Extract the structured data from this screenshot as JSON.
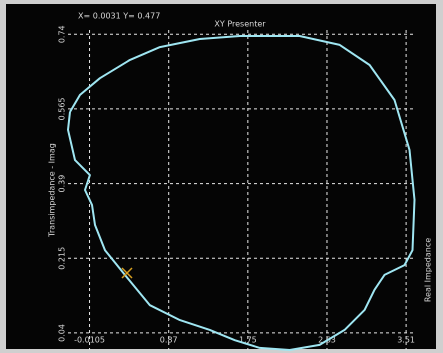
{
  "chart_data": {
    "type": "line",
    "title": "XY Presenter",
    "readout": "X= 0.0031 Y= 0.477",
    "y_label": "Transimpedance - Imag",
    "x_label": "Real Impedance",
    "series": [
      {
        "name": "XY",
        "color": "#9fe6f2",
        "x": [
          -0.228,
          -0.117,
          0.105,
          0.439,
          0.772,
          1.216,
          1.66,
          2.326,
          2.771,
          3.104,
          3.381,
          3.548,
          3.603,
          3.581,
          3.492,
          3.27,
          3.159,
          3.048,
          2.826,
          2.548,
          2.215,
          1.882,
          1.605,
          1.327,
          0.994,
          0.661,
          0.383,
          0.161,
          0.05,
          0.017,
          -0.061,
          -0.006,
          -0.172,
          -0.25,
          -0.228
        ],
        "values": [
          0.558,
          0.598,
          0.637,
          0.68,
          0.71,
          0.729,
          0.736,
          0.736,
          0.715,
          0.668,
          0.586,
          0.469,
          0.352,
          0.234,
          0.199,
          0.176,
          0.141,
          0.094,
          0.047,
          0.012,
          0.0,
          0.005,
          0.023,
          0.047,
          0.07,
          0.105,
          0.176,
          0.234,
          0.293,
          0.34,
          0.375,
          0.41,
          0.445,
          0.516,
          0.558
        ]
      }
    ],
    "xlim": [
      -0.25,
      3.62
    ],
    "ylim": [
      0.0,
      0.75
    ],
    "xticks": [
      -0.0105,
      0.87,
      1.75,
      2.63,
      3.51
    ],
    "yticks": [
      0.04,
      0.215,
      0.39,
      0.565,
      0.74
    ],
    "grid": true
  }
}
